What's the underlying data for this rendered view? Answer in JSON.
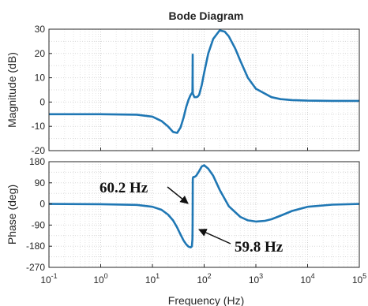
{
  "chart_data": {
    "type": "line",
    "title": "Bode Diagram",
    "xlabel": "Frequency  (Hz)",
    "x_scale": "log",
    "xlim": [
      0.1,
      100000
    ],
    "x_ticks": [
      {
        "value": 0.1,
        "base": "10",
        "exp": "-1"
      },
      {
        "value": 1,
        "base": "10",
        "exp": "0"
      },
      {
        "value": 10,
        "base": "10",
        "exp": "1"
      },
      {
        "value": 100,
        "base": "10",
        "exp": "2"
      },
      {
        "value": 1000,
        "base": "10",
        "exp": "3"
      },
      {
        "value": 10000,
        "base": "10",
        "exp": "4"
      },
      {
        "value": 100000,
        "base": "10",
        "exp": "5"
      }
    ],
    "grid": true,
    "line_color": "#1f77b4",
    "panels": [
      {
        "name": "magnitude",
        "ylabel": "Magnitude (dB)",
        "ylim": [
          -20,
          30
        ],
        "y_ticks": [
          "-20",
          "-10",
          "0",
          "10",
          "20",
          "30"
        ],
        "x": [
          0.1,
          1,
          5,
          10,
          15,
          20,
          25,
          30,
          35,
          40,
          45,
          50,
          55,
          59.5,
          59.9,
          60.0,
          60.1,
          60.5,
          65,
          70,
          75,
          80,
          90,
          100,
          120,
          150,
          200,
          250,
          300,
          400,
          500,
          700,
          1000,
          2000,
          3000,
          5000,
          10000,
          30000,
          100000
        ],
        "y": [
          -5,
          -5,
          -5.2,
          -6,
          -7.8,
          -10,
          -12.3,
          -12.7,
          -10.5,
          -6.5,
          -2,
          1,
          3,
          4,
          12,
          19.5,
          8,
          3.5,
          2,
          2,
          2.2,
          3,
          7,
          12,
          20,
          26,
          29.5,
          29,
          27,
          22,
          17,
          10,
          5.5,
          2,
          1.2,
          0.8,
          0.6,
          0.5,
          0.5
        ]
      },
      {
        "name": "phase",
        "ylabel": "Phase (deg)",
        "ylim": [
          -270,
          180
        ],
        "y_ticks": [
          "-270",
          "-180",
          "-90",
          "0",
          "90",
          "180"
        ],
        "x": [
          0.1,
          1,
          5,
          10,
          15,
          20,
          25,
          30,
          35,
          40,
          45,
          50,
          55,
          58,
          59.5,
          59.8,
          60.0,
          60.2,
          60.5,
          62,
          65,
          70,
          80,
          90,
          100,
          120,
          150,
          200,
          300,
          500,
          700,
          1000,
          1500,
          2000,
          3000,
          5000,
          10000,
          30000,
          100000
        ],
        "y": [
          0,
          -1,
          -4,
          -12,
          -25,
          -45,
          -70,
          -100,
          -130,
          -155,
          -172,
          -182,
          -185,
          -180,
          -150,
          -90,
          0,
          95,
          110,
          115,
          115,
          120,
          140,
          160,
          165,
          150,
          120,
          60,
          -10,
          -55,
          -70,
          -75,
          -72,
          -65,
          -50,
          -30,
          -12,
          -3,
          0
        ]
      }
    ],
    "annotations": [
      {
        "text": "60.2 Hz"
      },
      {
        "text": "59.8 Hz"
      }
    ]
  }
}
